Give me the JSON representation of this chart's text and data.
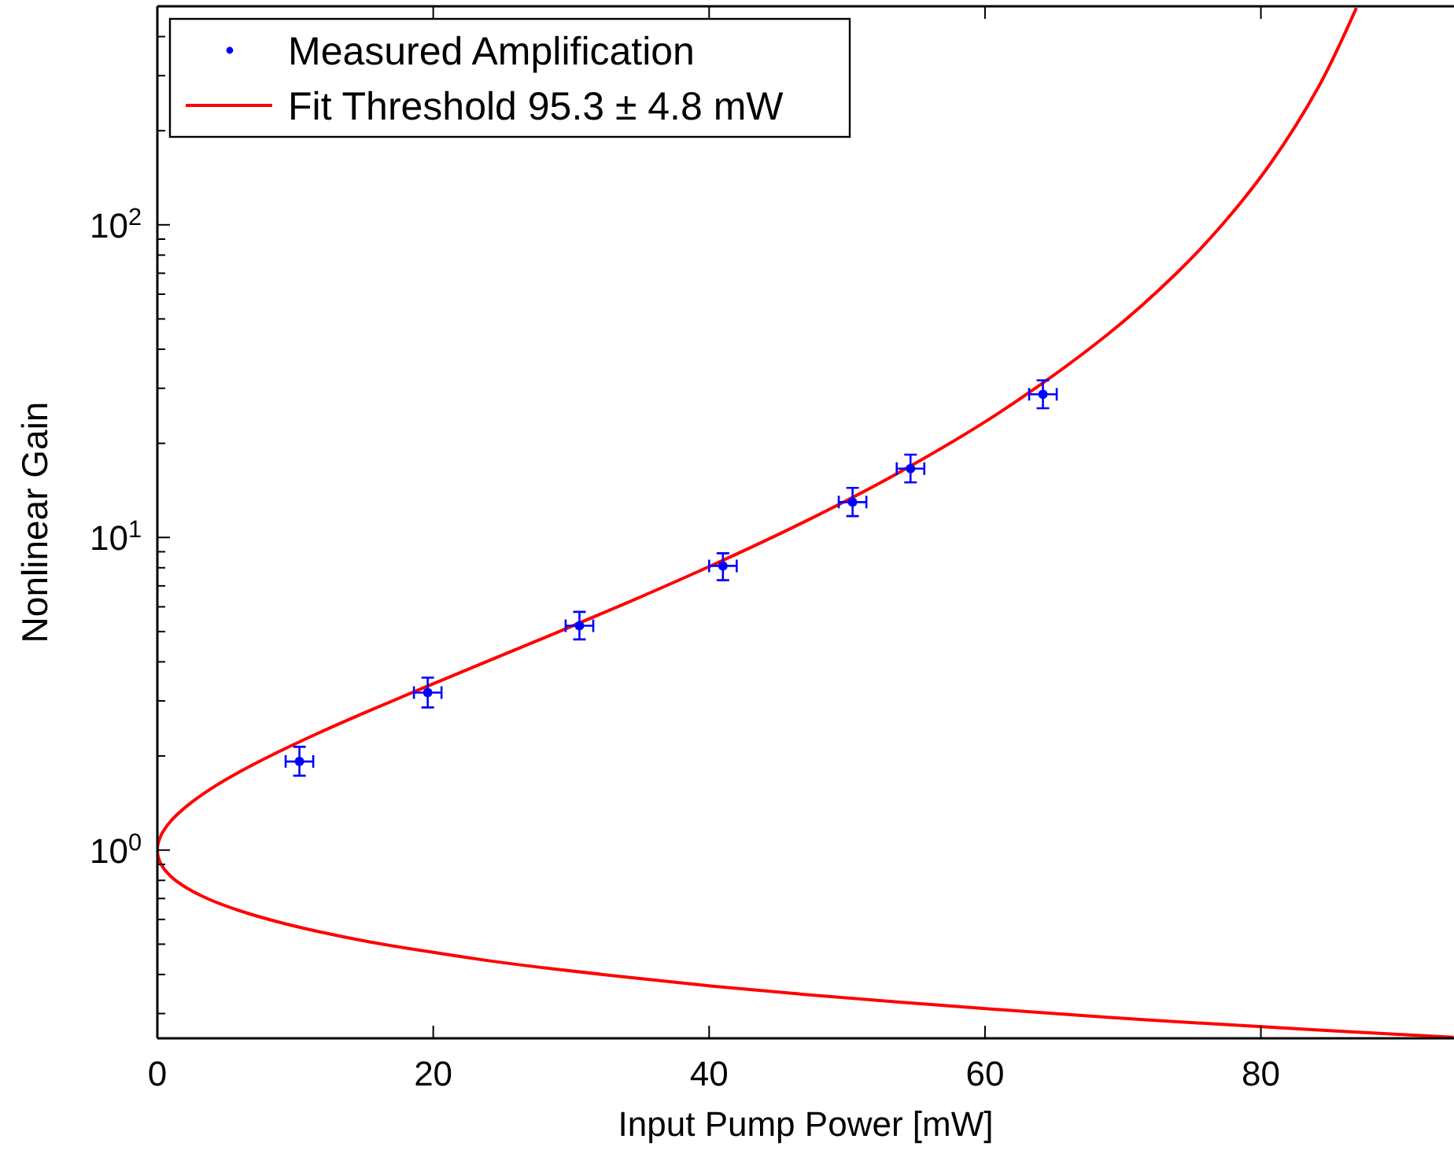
{
  "chart_data": {
    "type": "scatter",
    "xlabel": "Input Pump Power [mW]",
    "ylabel": "Nonlinear Gain",
    "log": "y",
    "grid": false,
    "legend": "top left",
    "xlim": [
      0,
      94
    ],
    "xticks": [
      0,
      20,
      40,
      60,
      80
    ],
    "ylim": [
      0.25,
      500
    ],
    "yticks": [
      {
        "value": 0.3,
        "label": null
      },
      {
        "value": 0.4,
        "label": null
      },
      {
        "value": 0.5,
        "label": null
      },
      {
        "value": 0.6,
        "label": null
      },
      {
        "value": 0.7,
        "label": null
      },
      {
        "value": 0.8,
        "label": null
      },
      {
        "value": 0.9,
        "label": null
      },
      {
        "value": 1,
        "label": "10$^{0}$"
      },
      {
        "value": 2,
        "label": null
      },
      {
        "value": 3,
        "label": null
      },
      {
        "value": 4,
        "label": null
      },
      {
        "value": 5,
        "label": null
      },
      {
        "value": 6,
        "label": null
      },
      {
        "value": 7,
        "label": null
      },
      {
        "value": 8,
        "label": null
      },
      {
        "value": 9,
        "label": null
      },
      {
        "value": 10,
        "label": "10$^{1}$"
      },
      {
        "value": 20,
        "label": null
      },
      {
        "value": 30,
        "label": null
      },
      {
        "value": 40,
        "label": null
      },
      {
        "value": 50,
        "label": null
      },
      {
        "value": 60,
        "label": null
      },
      {
        "value": 70,
        "label": null
      },
      {
        "value": 80,
        "label": null
      },
      {
        "value": 90,
        "label": null
      },
      {
        "value": 100,
        "label": "10$^{2}$"
      },
      {
        "value": 200,
        "label": null
      },
      {
        "value": 300,
        "label": null
      },
      {
        "value": 400,
        "label": null
      }
    ],
    "series": [
      {
        "name": "Measured Amplification",
        "marker": "circle",
        "color": "#0000ff",
        "x": [
          10.3,
          19.6,
          30.6,
          41.0,
          50.4,
          54.6,
          64.2
        ],
        "values": [
          1.92,
          3.19,
          5.22,
          8.11,
          12.97,
          16.6,
          28.7
        ],
        "errors": [
          [
            1.73,
            2.14
          ],
          [
            2.86,
            3.56
          ],
          [
            4.72,
            5.78
          ],
          [
            7.3,
            8.9
          ],
          [
            11.7,
            14.4
          ],
          [
            15.0,
            18.4
          ],
          [
            25.9,
            31.8
          ]
        ],
        "xerrors": [
          1.0,
          1.0,
          1.0,
          1.0,
          1.0,
          1.0,
          1.0
        ]
      },
      {
        "name": "Fit Threshold 95.3 ± 4.8 mW",
        "type": "line",
        "line_style": "solid",
        "color": "#ff0000",
        "x": [
          93.97,
          89.67,
          84.21,
          77.19,
          68.85,
          60.99,
          53.61,
          46.7,
          40.26,
          34.31,
          28.83,
          23.83,
          19.3,
          15.25,
          11.67,
          8.58,
          5.96,
          3.81,
          2.144,
          0.953,
          0.238,
          0,
          0.238,
          0.953,
          2.144,
          3.81,
          5.96,
          8.58,
          11.67,
          15.25,
          19.3,
          23.83,
          28.83,
          34.31,
          40.26,
          46.7,
          53.61,
          60.99,
          68.85,
          73.8,
          77.19,
          80.66,
          84.21,
          86.92
        ],
        "values": [
          0.2518,
          0.2577,
          0.2657,
          0.277,
          0.292,
          0.309,
          0.327,
          0.346,
          0.367,
          0.391,
          0.416,
          0.444,
          0.476,
          0.51,
          0.549,
          0.592,
          0.64,
          0.694,
          0.756,
          0.826,
          0.907,
          1,
          1.108,
          1.235,
          1.384,
          1.5625,
          1.778,
          2.041,
          2.367,
          2.778,
          3.306,
          4,
          4.938,
          6.25,
          8.163,
          11.11,
          16,
          25,
          44.44,
          69.44,
          100,
          156.25,
          277.8,
          493.8
        ]
      }
    ]
  }
}
